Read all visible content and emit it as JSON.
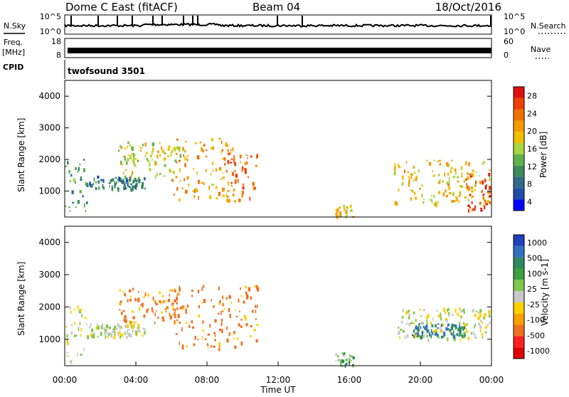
{
  "header": {
    "station": "Dome C East (fitACF)",
    "beam": "Beam 04",
    "date": "18/Oct/2016"
  },
  "top_panels": {
    "nsky_label": "N.Sky",
    "nsky_ticks": [
      "10^5",
      "10^0"
    ],
    "nsearch_label": "N.Search",
    "nsearch_ticks": [
      "10^5",
      "10^0"
    ],
    "freq_label": "Freq.",
    "freq_unit": "[MHz]",
    "freq_ticks": [
      "18",
      "8"
    ],
    "nave_label": "Nave",
    "nave_ticks": [
      "60",
      "0"
    ],
    "cpid_label": "CPID",
    "cpid_value": "twofsound 3501"
  },
  "xaxis": {
    "ticks": [
      "00:00",
      "04:00",
      "08:00",
      "12:00",
      "16:00",
      "20:00",
      "00:00"
    ],
    "label": "Time UT"
  },
  "colors": {
    "power": [
      "#0000ff",
      "#1f4ea8",
      "#2e6b8a",
      "#3d8a5c",
      "#5fb34a",
      "#a8d640",
      "#f0c000",
      "#f59a00",
      "#f07000",
      "#ee4000",
      "#e01010"
    ],
    "velocity": [
      "#1f3fbf",
      "#2f70c0",
      "#2e8a60",
      "#3aa040",
      "#7fc850",
      "#c8c8c8",
      "#ffd000",
      "#ffa000",
      "#f07020",
      "#ff2020",
      "#e00000"
    ]
  },
  "chart_data": [
    {
      "type": "heatmap",
      "title": "",
      "xlabel": "",
      "ylabel": "Slant Range [km]",
      "xlim": [
        "00:00",
        "24:00"
      ],
      "ylim": [
        180,
        4500
      ],
      "yticks": [
        "1000",
        "2000",
        "3000",
        "4000"
      ],
      "colorbar": {
        "label": "Power [dB]",
        "range": [
          0,
          30
        ],
        "ticks": [
          "4",
          "8",
          "12",
          "16",
          "20",
          "24",
          "28"
        ]
      },
      "regions": [
        {
          "t0": 0.0,
          "t1": 1.2,
          "r0": 300,
          "r1": 2100,
          "level": 10
        },
        {
          "t0": 1.2,
          "t1": 4.5,
          "r0": 1100,
          "r1": 1500,
          "level": 8
        },
        {
          "t0": 3.0,
          "t1": 6.5,
          "r0": 1500,
          "r1": 2600,
          "level": 16
        },
        {
          "t0": 6.0,
          "t1": 9.5,
          "r0": 700,
          "r1": 2700,
          "level": 20
        },
        {
          "t0": 9.0,
          "t1": 10.8,
          "r0": 700,
          "r1": 2300,
          "level": 24
        },
        {
          "t0": 15.2,
          "t1": 16.2,
          "r0": 200,
          "r1": 600,
          "level": 18
        },
        {
          "t0": 18.5,
          "t1": 23.9,
          "r0": 600,
          "r1": 2000,
          "level": 18
        },
        {
          "t0": 22.5,
          "t1": 23.9,
          "r0": 400,
          "r1": 1600,
          "level": 26
        }
      ]
    },
    {
      "type": "heatmap",
      "title": "",
      "xlabel": "Time UT",
      "ylabel": "Slant Range [km]",
      "xlim": [
        "00:00",
        "24:00"
      ],
      "ylim": [
        180,
        4500
      ],
      "yticks": [
        "1000",
        "2000",
        "3000",
        "4000"
      ],
      "colorbar": {
        "label": "Velocity [m s-1]",
        "ticks": [
          "1000",
          "500",
          "100",
          "25",
          "-25",
          "-100",
          "-500",
          "-1000"
        ]
      },
      "regions": [
        {
          "t0": 0.0,
          "t1": 1.2,
          "r0": 300,
          "r1": 2100,
          "level": 0
        },
        {
          "t0": 1.2,
          "t1": 4.5,
          "r0": 1100,
          "r1": 1500,
          "level": 0
        },
        {
          "t0": 3.0,
          "t1": 6.5,
          "r0": 1500,
          "r1": 2600,
          "level": -150
        },
        {
          "t0": 6.0,
          "t1": 10.8,
          "r0": 700,
          "r1": 2700,
          "level": -150
        },
        {
          "t0": 15.2,
          "t1": 16.2,
          "r0": 200,
          "r1": 600,
          "level": 80
        },
        {
          "t0": 18.5,
          "t1": 23.9,
          "r0": 1000,
          "r1": 2000,
          "level": 0
        },
        {
          "t0": 19.5,
          "t1": 22.5,
          "r0": 1100,
          "r1": 1500,
          "level": 500
        }
      ]
    }
  ]
}
